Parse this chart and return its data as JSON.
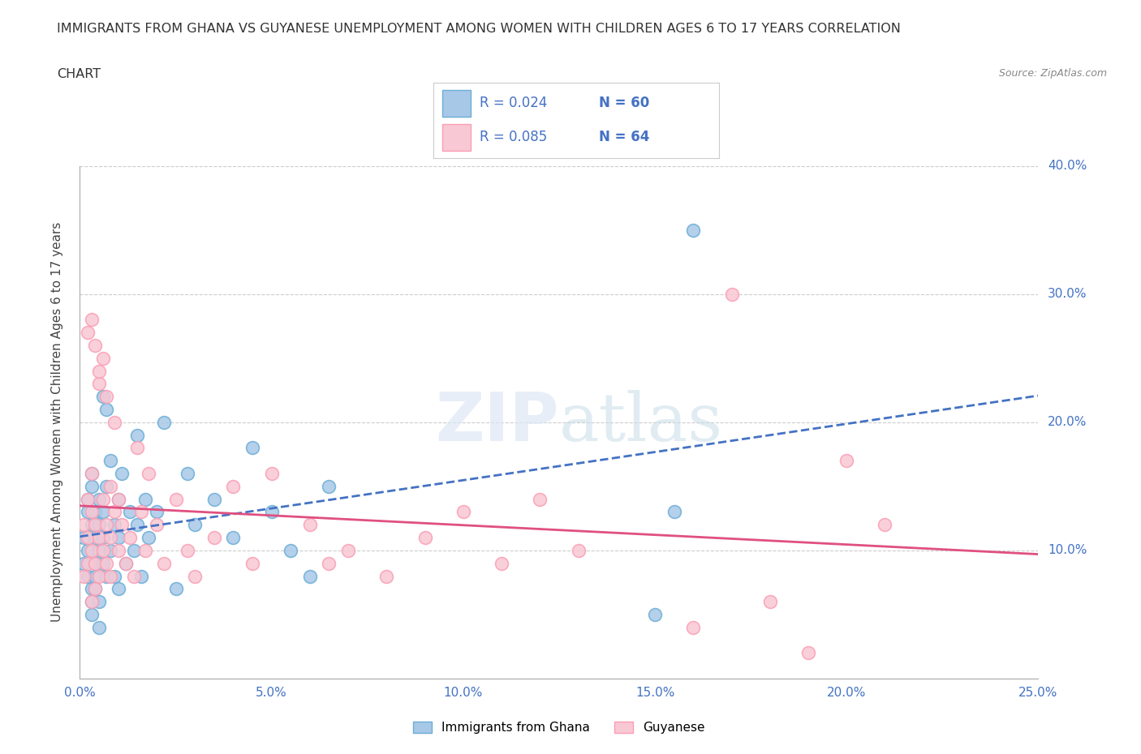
{
  "title_line1": "IMMIGRANTS FROM GHANA VS GUYANESE UNEMPLOYMENT AMONG WOMEN WITH CHILDREN AGES 6 TO 17 YEARS CORRELATION",
  "title_line2": "CHART",
  "source_text": "Source: ZipAtlas.com",
  "ylabel": "Unemployment Among Women with Children Ages 6 to 17 years",
  "xlim": [
    0,
    0.25
  ],
  "ylim": [
    0,
    0.4
  ],
  "xticks": [
    0.0,
    0.05,
    0.1,
    0.15,
    0.2,
    0.25
  ],
  "xticklabels": [
    "0.0%",
    "5.0%",
    "10.0%",
    "15.0%",
    "20.0%",
    "25.0%"
  ],
  "yticks": [
    0.0,
    0.1,
    0.2,
    0.3,
    0.4
  ],
  "yticklabels": [
    "",
    "10.0%",
    "20.0%",
    "30.0%",
    "40.0%"
  ],
  "series1_color": "#a8c8e8",
  "series1_edge": "#6baed6",
  "series2_color": "#f8c8d4",
  "series2_edge": "#fa9fb5",
  "series1_label": "Immigrants from Ghana",
  "series2_label": "Guyanese",
  "series1_R": "0.024",
  "series1_N": "60",
  "series2_R": "0.085",
  "series2_N": "64",
  "trend1_color": "#4472c4",
  "trend2_color": "#e05080",
  "legend_text_color": "#4472c4",
  "tick_color": "#4472c4",
  "background_color": "#ffffff",
  "watermark": "ZIPatlas",
  "ghana_x": [
    0.001,
    0.001,
    0.002,
    0.002,
    0.002,
    0.002,
    0.003,
    0.003,
    0.003,
    0.003,
    0.003,
    0.003,
    0.004,
    0.004,
    0.004,
    0.004,
    0.004,
    0.005,
    0.005,
    0.005,
    0.005,
    0.005,
    0.006,
    0.006,
    0.006,
    0.006,
    0.007,
    0.007,
    0.007,
    0.008,
    0.008,
    0.009,
    0.009,
    0.01,
    0.01,
    0.01,
    0.011,
    0.012,
    0.013,
    0.014,
    0.015,
    0.015,
    0.016,
    0.017,
    0.018,
    0.02,
    0.022,
    0.025,
    0.028,
    0.03,
    0.035,
    0.04,
    0.045,
    0.05,
    0.055,
    0.06,
    0.065,
    0.15,
    0.155,
    0.16
  ],
  "ghana_y": [
    0.09,
    0.11,
    0.13,
    0.1,
    0.14,
    0.08,
    0.12,
    0.06,
    0.07,
    0.15,
    0.16,
    0.05,
    0.09,
    0.11,
    0.13,
    0.07,
    0.08,
    0.12,
    0.06,
    0.1,
    0.14,
    0.04,
    0.09,
    0.11,
    0.22,
    0.13,
    0.15,
    0.21,
    0.08,
    0.1,
    0.17,
    0.12,
    0.08,
    0.11,
    0.14,
    0.07,
    0.16,
    0.09,
    0.13,
    0.1,
    0.12,
    0.19,
    0.08,
    0.14,
    0.11,
    0.13,
    0.2,
    0.07,
    0.16,
    0.12,
    0.14,
    0.11,
    0.18,
    0.13,
    0.1,
    0.08,
    0.15,
    0.05,
    0.13,
    0.35
  ],
  "guyanese_x": [
    0.001,
    0.001,
    0.002,
    0.002,
    0.002,
    0.002,
    0.003,
    0.003,
    0.003,
    0.003,
    0.003,
    0.004,
    0.004,
    0.004,
    0.004,
    0.005,
    0.005,
    0.005,
    0.005,
    0.006,
    0.006,
    0.006,
    0.007,
    0.007,
    0.007,
    0.008,
    0.008,
    0.008,
    0.009,
    0.009,
    0.01,
    0.01,
    0.011,
    0.012,
    0.013,
    0.014,
    0.015,
    0.016,
    0.017,
    0.018,
    0.02,
    0.022,
    0.025,
    0.028,
    0.03,
    0.035,
    0.04,
    0.045,
    0.05,
    0.06,
    0.065,
    0.07,
    0.08,
    0.09,
    0.1,
    0.11,
    0.12,
    0.13,
    0.16,
    0.17,
    0.18,
    0.19,
    0.2,
    0.21
  ],
  "guyanese_y": [
    0.12,
    0.08,
    0.27,
    0.11,
    0.14,
    0.09,
    0.28,
    0.13,
    0.1,
    0.16,
    0.06,
    0.26,
    0.09,
    0.12,
    0.07,
    0.23,
    0.11,
    0.08,
    0.24,
    0.14,
    0.1,
    0.25,
    0.12,
    0.22,
    0.09,
    0.15,
    0.11,
    0.08,
    0.2,
    0.13,
    0.14,
    0.1,
    0.12,
    0.09,
    0.11,
    0.08,
    0.18,
    0.13,
    0.1,
    0.16,
    0.12,
    0.09,
    0.14,
    0.1,
    0.08,
    0.11,
    0.15,
    0.09,
    0.16,
    0.12,
    0.09,
    0.1,
    0.08,
    0.11,
    0.13,
    0.09,
    0.14,
    0.1,
    0.04,
    0.3,
    0.06,
    0.02,
    0.17,
    0.12
  ]
}
